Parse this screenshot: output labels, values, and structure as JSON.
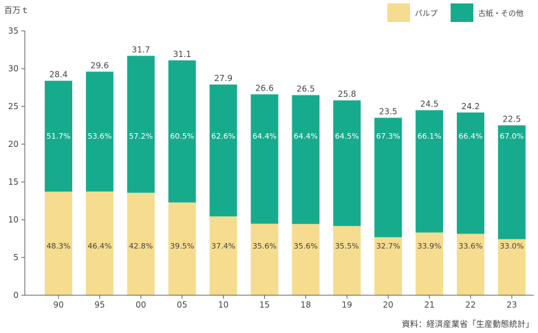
{
  "colors": {
    "pulp": "#f5dc8e",
    "recycled": "#17ab8e",
    "axis": "#555555"
  },
  "unit_label": "百万ｔ",
  "source": "資料：経済産業省「生産動態統計」",
  "chart_data": {
    "type": "bar",
    "stacked": true,
    "categories": [
      "90",
      "95",
      "00",
      "05",
      "10",
      "15",
      "18",
      "19",
      "20",
      "21",
      "22",
      "23"
    ],
    "ylim": [
      0,
      35
    ],
    "yticks": [
      0,
      5,
      10,
      15,
      20,
      25,
      30,
      35
    ],
    "grid": false,
    "legend": "top-right",
    "totals": [
      28.4,
      29.6,
      31.7,
      31.1,
      27.9,
      26.6,
      26.5,
      25.8,
      23.5,
      24.5,
      24.2,
      22.5
    ],
    "total_labels": [
      "28.4",
      "29.6",
      "31.7",
      "31.1",
      "27.9",
      "26.6",
      "26.5",
      "25.8",
      "23.5",
      "24.5",
      "24.2",
      "22.5"
    ],
    "series": [
      {
        "name": "パルプ",
        "share_pct": [
          48.3,
          46.4,
          42.8,
          39.5,
          37.4,
          35.6,
          35.6,
          35.5,
          32.7,
          33.9,
          33.6,
          33.0
        ],
        "share_labels": [
          "48.3%",
          "46.4%",
          "42.8%",
          "39.5%",
          "37.4%",
          "35.6%",
          "35.6%",
          "35.5%",
          "32.7%",
          "33.9%",
          "33.6%",
          "33.0%"
        ]
      },
      {
        "name": "古紙・その他",
        "share_pct": [
          51.7,
          53.6,
          57.2,
          60.5,
          62.6,
          64.4,
          64.4,
          64.5,
          67.3,
          66.1,
          66.4,
          67.0
        ],
        "share_labels": [
          "51.7%",
          "53.6%",
          "57.2%",
          "60.5%",
          "62.6%",
          "64.4%",
          "64.4%",
          "64.5%",
          "67.3%",
          "66.1%",
          "66.4%",
          "67.0%"
        ]
      }
    ]
  }
}
